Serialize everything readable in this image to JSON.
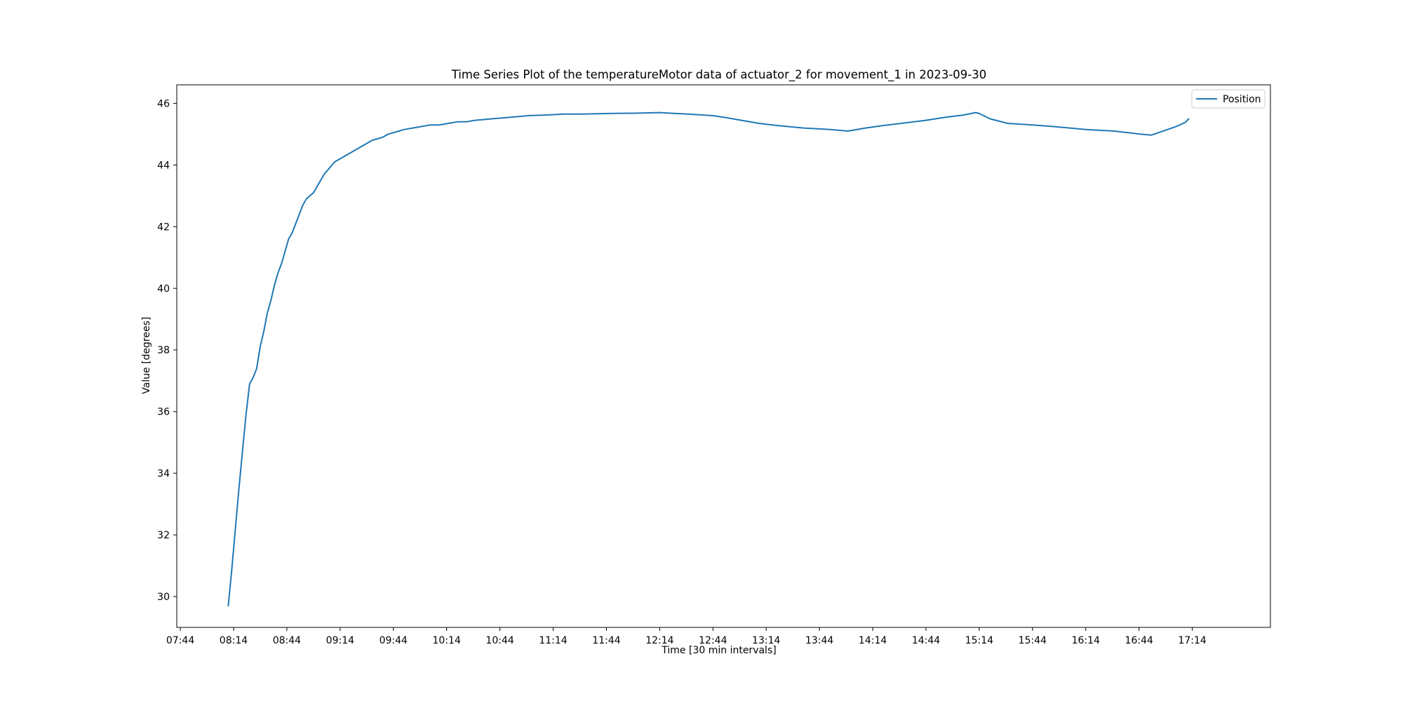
{
  "chart_data": {
    "type": "line",
    "title": "Time Series Plot of the temperatureMotor data of actuator_2 for movement_1 in 2023-09-30",
    "xlabel": "Time [30 min intervals]",
    "ylabel": "Value [degrees]",
    "x_ticks": [
      "07:44",
      "08:14",
      "08:44",
      "09:14",
      "09:44",
      "10:14",
      "10:44",
      "11:14",
      "11:44",
      "12:14",
      "12:44",
      "13:14",
      "13:44",
      "14:14",
      "14:44",
      "15:14",
      "15:44",
      "16:14",
      "16:44",
      "17:14"
    ],
    "y_ticks": [
      30,
      32,
      34,
      36,
      38,
      40,
      42,
      44,
      46
    ],
    "xlim": [
      "07:42",
      "17:58"
    ],
    "ylim": [
      29.0,
      46.6
    ],
    "grid": false,
    "legend": "top-right",
    "series": [
      {
        "name": "Position",
        "color": "#1f77b4",
        "x": [
          "08:11",
          "08:13",
          "08:15",
          "08:17",
          "08:19",
          "08:21",
          "08:23",
          "08:25",
          "08:27",
          "08:29",
          "08:31",
          "08:33",
          "08:35",
          "08:37",
          "08:39",
          "08:41",
          "08:43",
          "08:45",
          "08:47",
          "08:49",
          "08:51",
          "08:53",
          "08:55",
          "08:57",
          "08:59",
          "09:02",
          "09:05",
          "09:08",
          "09:11",
          "09:14",
          "09:17",
          "09:20",
          "09:23",
          "09:26",
          "09:29",
          "09:32",
          "09:35",
          "09:38",
          "09:41",
          "09:44",
          "09:47",
          "09:50",
          "09:55",
          "10:00",
          "10:05",
          "10:10",
          "10:15",
          "10:20",
          "10:25",
          "10:30",
          "10:40",
          "10:50",
          "11:00",
          "11:10",
          "11:20",
          "11:30",
          "11:45",
          "12:00",
          "12:14",
          "12:20",
          "12:30",
          "12:44",
          "12:50",
          "13:00",
          "13:10",
          "13:20",
          "13:35",
          "13:50",
          "14:00",
          "14:10",
          "14:20",
          "14:30",
          "14:44",
          "14:55",
          "15:05",
          "15:12",
          "15:14",
          "15:20",
          "15:30",
          "15:44",
          "15:55",
          "16:05",
          "16:14",
          "16:30",
          "16:45",
          "16:51",
          "16:55",
          "17:00",
          "17:05",
          "17:10",
          "17:12"
        ],
        "values": [
          29.7,
          30.9,
          32.2,
          33.5,
          34.7,
          35.9,
          36.9,
          37.1,
          37.4,
          38.1,
          38.6,
          39.2,
          39.6,
          40.1,
          40.5,
          40.8,
          41.2,
          41.6,
          41.8,
          42.1,
          42.4,
          42.7,
          42.9,
          43.0,
          43.1,
          43.4,
          43.7,
          43.9,
          44.1,
          44.2,
          44.3,
          44.4,
          44.5,
          44.6,
          44.7,
          44.8,
          44.85,
          44.9,
          45.0,
          45.05,
          45.1,
          45.15,
          45.2,
          45.25,
          45.3,
          45.3,
          45.35,
          45.4,
          45.4,
          45.45,
          45.5,
          45.55,
          45.6,
          45.62,
          45.65,
          45.65,
          45.67,
          45.68,
          45.7,
          45.68,
          45.65,
          45.6,
          45.55,
          45.45,
          45.35,
          45.28,
          45.2,
          45.15,
          45.1,
          45.2,
          45.28,
          45.35,
          45.45,
          45.55,
          45.62,
          45.7,
          45.67,
          45.5,
          45.35,
          45.3,
          45.25,
          45.2,
          45.15,
          45.1,
          45.0,
          44.97,
          45.05,
          45.15,
          45.25,
          45.38,
          45.5
        ]
      }
    ]
  }
}
